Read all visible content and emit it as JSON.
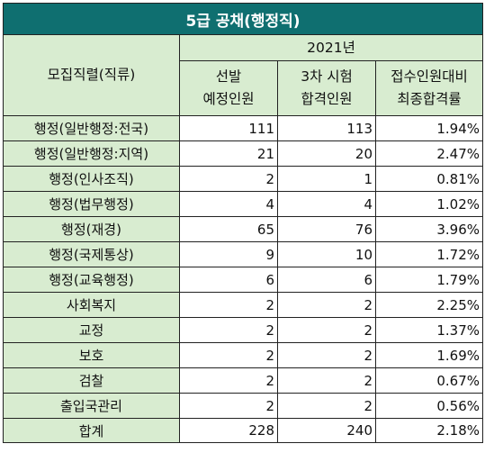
{
  "title": "5급 공채(행정직)",
  "headers": {
    "category": "모집직렬(직류)",
    "year": "2021년",
    "col1_line1": "선발",
    "col1_line2": "예정인원",
    "col2_line1": "3차 시험",
    "col2_line2": "합격인원",
    "col3_line1": "접수인원대비",
    "col3_line2": "최종합격률"
  },
  "rows": [
    {
      "category": "행정(일반행정:전국)",
      "planned": "111",
      "passed": "113",
      "rate": "1.94%"
    },
    {
      "category": "행정(일반행정:지역)",
      "planned": "21",
      "passed": "20",
      "rate": "2.47%"
    },
    {
      "category": "행정(인사조직)",
      "planned": "2",
      "passed": "1",
      "rate": "0.81%"
    },
    {
      "category": "행정(법무행정)",
      "planned": "4",
      "passed": "4",
      "rate": "1.02%"
    },
    {
      "category": "행정(재경)",
      "planned": "65",
      "passed": "76",
      "rate": "3.96%"
    },
    {
      "category": "행정(국제통상)",
      "planned": "9",
      "passed": "10",
      "rate": "1.72%"
    },
    {
      "category": "행정(교육행정)",
      "planned": "6",
      "passed": "6",
      "rate": "1.79%"
    },
    {
      "category": "사회복지",
      "planned": "2",
      "passed": "2",
      "rate": "2.25%"
    },
    {
      "category": "교정",
      "planned": "2",
      "passed": "2",
      "rate": "1.37%"
    },
    {
      "category": "보호",
      "planned": "2",
      "passed": "2",
      "rate": "1.69%"
    },
    {
      "category": "검찰",
      "planned": "2",
      "passed": "2",
      "rate": "0.67%"
    },
    {
      "category": "출입국관리",
      "planned": "2",
      "passed": "2",
      "rate": "0.56%"
    }
  ],
  "total": {
    "category": "합계",
    "planned": "228",
    "passed": "240",
    "rate": "2.18%"
  },
  "colors": {
    "title_bg": "#0f6f70",
    "header_bg": "#d8ecd0"
  }
}
